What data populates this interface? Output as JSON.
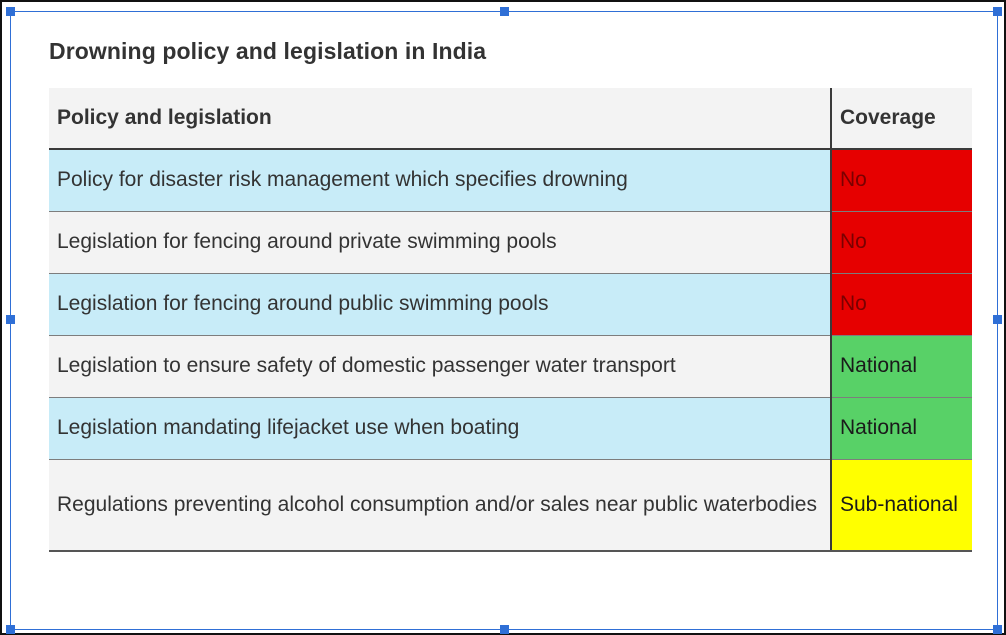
{
  "title": "Drowning policy and legislation in India",
  "table": {
    "columns": [
      "Policy and legislation",
      "Coverage"
    ],
    "rows": [
      {
        "policy": "Policy for disaster risk management which specifies drowning",
        "coverage": "No"
      },
      {
        "policy": "Legislation for fencing around private swimming pools",
        "coverage": "No"
      },
      {
        "policy": "Legislation for fencing around public swimming pools",
        "coverage": "No"
      },
      {
        "policy": "Legislation to ensure safety of domestic passenger water transport",
        "coverage": "National"
      },
      {
        "policy": "Legislation mandating lifejacket use when boating",
        "coverage": "National"
      },
      {
        "policy": "Regulations preventing alcohol consumption and/or sales near public waterbodies",
        "coverage": "Sub-national"
      }
    ]
  },
  "colors": {
    "no": "#e60000",
    "national": "#58d167",
    "subnational": "#ffff00",
    "row_blue": "#c8ecf8",
    "row_grey": "#f3f3f3",
    "selection": "#2f6fd6"
  }
}
